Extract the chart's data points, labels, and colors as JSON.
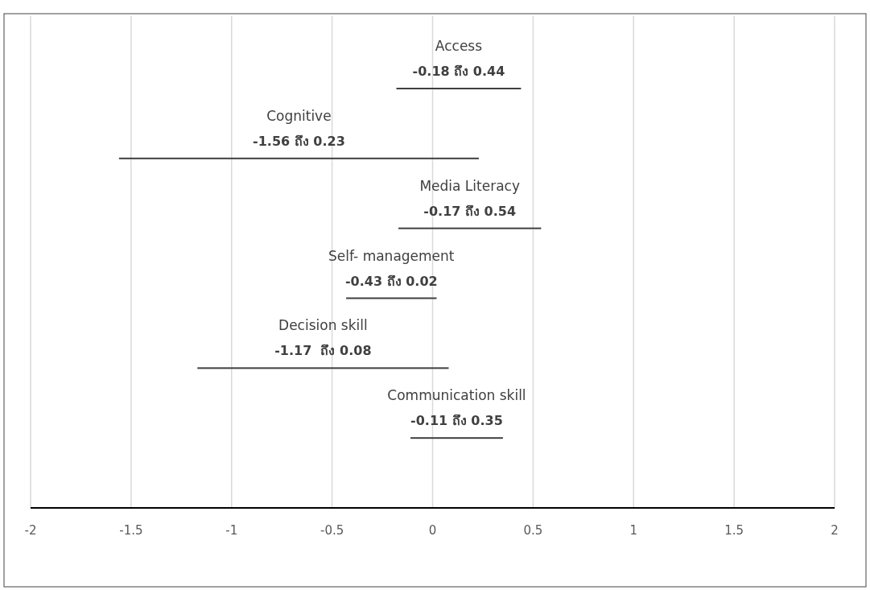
{
  "chart_data": {
    "type": "bar",
    "orientation": "horizontal",
    "categories": [
      "Access",
      "Cognitive",
      "Media Literacy",
      "Self- management",
      "Decision skill",
      "Communication skill"
    ],
    "base": [
      -0.18,
      -1.56,
      -0.17,
      -0.43,
      -1.17,
      -0.11
    ],
    "values": [
      0.62,
      1.79,
      0.71,
      0.45,
      1.25,
      0.46
    ],
    "annotations": [
      "-0.18 ถึง 0.44",
      "-1.56 ถึง 0.23",
      "-0.17 ถึง 0.54",
      "-0.43 ถึง 0.02",
      "-1.17  ถึง 0.08",
      "-0.11 ถึง 0.35"
    ],
    "color": "#404040",
    "xlim": [
      -2,
      2
    ],
    "xticks": [
      -2,
      -1.5,
      -1,
      -0.5,
      0,
      0.5,
      1,
      1.5,
      2
    ],
    "grid": "x",
    "tick_labels": "x"
  }
}
